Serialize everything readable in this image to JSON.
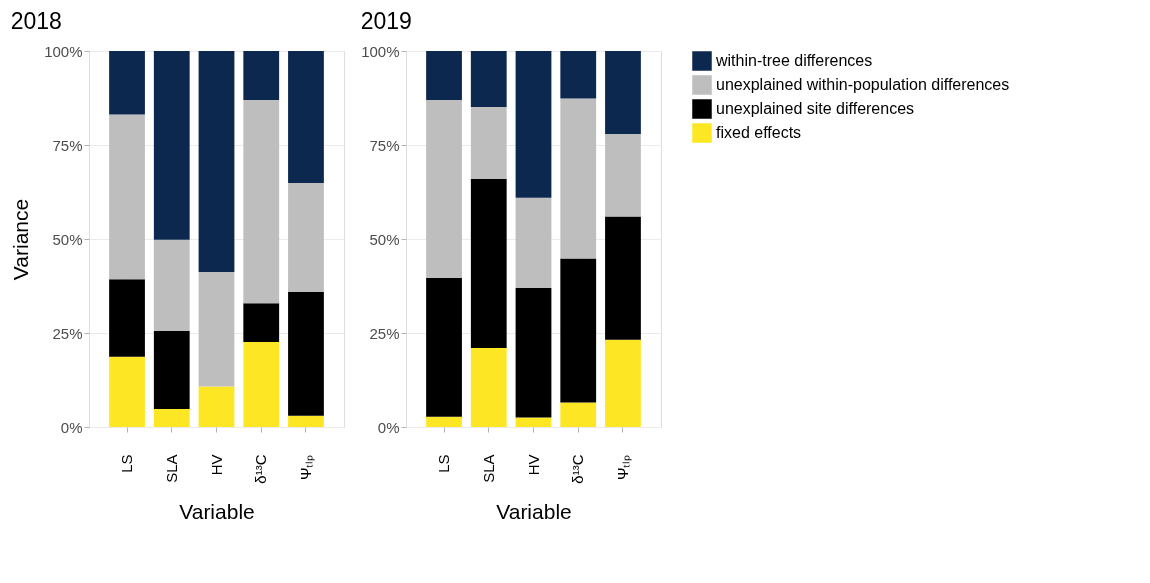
{
  "chart_data": [
    {
      "type": "bar",
      "stacked": true,
      "title": "2018",
      "xlabel": "Variable",
      "ylabel": "Variance",
      "grid": true,
      "legend": "right",
      "categories": [
        "LS",
        "SLA",
        "HV",
        "δ¹³C",
        "Ψₜₗₚ"
      ],
      "ylim": [
        0,
        100
      ],
      "yticks": [
        {
          "value": 0,
          "label": "0%"
        },
        {
          "value": 25,
          "label": "25%"
        },
        {
          "value": 50,
          "label": "50%"
        },
        {
          "value": 75,
          "label": "75%"
        },
        {
          "value": 100,
          "label": "100%"
        }
      ],
      "series": [
        {
          "name": "fixed effects",
          "color": "#fde725",
          "values": [
            18.7,
            4.8,
            10.8,
            22.6,
            3.0
          ]
        },
        {
          "name": "unexplained site differences",
          "color": "#000000",
          "values": [
            20.6,
            20.7,
            0,
            10.3,
            32.9
          ]
        },
        {
          "name": "unexplained within-population differences",
          "color": "#bebebe",
          "values": [
            43.8,
            24.3,
            30.4,
            54.1,
            29.0
          ]
        },
        {
          "name": "within-tree differences",
          "color": "#0d284f",
          "values": [
            16.9,
            50.2,
            58.8,
            13.0,
            35.1
          ]
        }
      ]
    },
    {
      "type": "bar",
      "stacked": true,
      "title": "2019",
      "xlabel": "Variable",
      "grid": true,
      "legend": "right",
      "categories": [
        "LS",
        "SLA",
        "HV",
        "δ¹³C",
        "Ψₜₗₚ"
      ],
      "ylim": [
        0,
        100
      ],
      "yticks": [
        {
          "value": 0,
          "label": "0%"
        },
        {
          "value": 25,
          "label": "25%"
        },
        {
          "value": 50,
          "label": "50%"
        },
        {
          "value": 75,
          "label": "75%"
        },
        {
          "value": 100,
          "label": "100%"
        }
      ],
      "series": [
        {
          "name": "fixed effects",
          "color": "#fde725",
          "values": [
            2.7,
            21.0,
            2.5,
            6.5,
            23.2
          ]
        },
        {
          "name": "unexplained site differences",
          "color": "#000000",
          "values": [
            36.9,
            45.0,
            34.5,
            38.3,
            32.8
          ]
        },
        {
          "name": "unexplained within-population differences",
          "color": "#bebebe",
          "values": [
            47.4,
            19.1,
            24.0,
            42.6,
            21.9
          ]
        },
        {
          "name": "within-tree differences",
          "color": "#0d284f",
          "values": [
            13.0,
            14.9,
            39.0,
            12.6,
            22.1
          ]
        }
      ]
    }
  ]
}
